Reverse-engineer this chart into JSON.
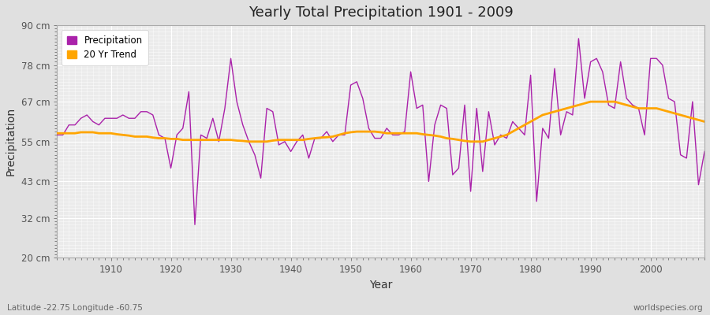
{
  "title": "Yearly Total Precipitation 1901 - 2009",
  "xlabel": "Year",
  "ylabel": "Precipitation",
  "bottom_left_label": "Latitude -22.75 Longitude -60.75",
  "bottom_right_label": "worldspecies.org",
  "ylim": [
    20,
    90
  ],
  "yticks": [
    20,
    32,
    43,
    55,
    67,
    78,
    90
  ],
  "ytick_labels": [
    "20 cm",
    "32 cm",
    "43 cm",
    "55 cm",
    "67 cm",
    "78 cm",
    "90 cm"
  ],
  "xlim": [
    1901,
    2009
  ],
  "xticks": [
    1910,
    1920,
    1930,
    1940,
    1950,
    1960,
    1970,
    1980,
    1990,
    2000
  ],
  "precipitation_color": "#AA22AA",
  "trend_color": "#FFA500",
  "figure_bg_color": "#E0E0E0",
  "plot_bg_color": "#EBEBEB",
  "grid_color": "#FFFFFF",
  "legend_entries": [
    "Precipitation",
    "20 Yr Trend"
  ],
  "years": [
    1901,
    1902,
    1903,
    1904,
    1905,
    1906,
    1907,
    1908,
    1909,
    1910,
    1911,
    1912,
    1913,
    1914,
    1915,
    1916,
    1917,
    1918,
    1919,
    1920,
    1921,
    1922,
    1923,
    1924,
    1925,
    1926,
    1927,
    1928,
    1929,
    1930,
    1931,
    1932,
    1933,
    1934,
    1935,
    1936,
    1937,
    1938,
    1939,
    1940,
    1941,
    1942,
    1943,
    1944,
    1945,
    1946,
    1947,
    1948,
    1949,
    1950,
    1951,
    1952,
    1953,
    1954,
    1955,
    1956,
    1957,
    1958,
    1959,
    1960,
    1961,
    1962,
    1963,
    1964,
    1965,
    1966,
    1967,
    1968,
    1969,
    1970,
    1971,
    1972,
    1973,
    1974,
    1975,
    1976,
    1977,
    1978,
    1979,
    1980,
    1981,
    1982,
    1983,
    1984,
    1985,
    1986,
    1987,
    1988,
    1989,
    1990,
    1991,
    1992,
    1993,
    1994,
    1995,
    1996,
    1997,
    1998,
    1999,
    2000,
    2001,
    2002,
    2003,
    2004,
    2005,
    2006,
    2007,
    2008,
    2009
  ],
  "precipitation": [
    57,
    57,
    60,
    60,
    62,
    63,
    61,
    60,
    62,
    62,
    62,
    63,
    62,
    62,
    64,
    64,
    63,
    57,
    56,
    47,
    57,
    59,
    70,
    30,
    57,
    56,
    62,
    55,
    65,
    80,
    67,
    60,
    55,
    51,
    44,
    65,
    64,
    54,
    55,
    52,
    55,
    57,
    50,
    56,
    56,
    58,
    55,
    57,
    57,
    72,
    73,
    68,
    59,
    56,
    56,
    59,
    57,
    57,
    58,
    76,
    65,
    66,
    43,
    60,
    66,
    65,
    45,
    47,
    66,
    40,
    65,
    46,
    64,
    54,
    57,
    56,
    61,
    59,
    57,
    75,
    37,
    59,
    56,
    77,
    57,
    64,
    63,
    86,
    68,
    79,
    80,
    76,
    66,
    65,
    79,
    68,
    66,
    65,
    57,
    80,
    80,
    78,
    68,
    67,
    51,
    50,
    67,
    42,
    52
  ],
  "trend": [
    57.5,
    57.5,
    57.5,
    57.5,
    57.8,
    57.8,
    57.8,
    57.5,
    57.5,
    57.5,
    57.2,
    57.0,
    56.8,
    56.5,
    56.5,
    56.5,
    56.2,
    56.0,
    56.0,
    55.8,
    55.8,
    55.5,
    55.5,
    55.5,
    55.5,
    55.5,
    55.5,
    55.5,
    55.5,
    55.5,
    55.3,
    55.2,
    55.0,
    55.0,
    55.0,
    55.0,
    55.3,
    55.5,
    55.5,
    55.5,
    55.5,
    55.5,
    55.8,
    56.0,
    56.2,
    56.3,
    56.5,
    57.0,
    57.5,
    57.8,
    58.0,
    58.0,
    58.0,
    58.0,
    57.8,
    57.5,
    57.5,
    57.5,
    57.5,
    57.5,
    57.5,
    57.2,
    57.0,
    56.8,
    56.5,
    56.0,
    55.8,
    55.5,
    55.2,
    55.0,
    55.0,
    55.0,
    55.5,
    56.0,
    56.5,
    57.0,
    58.0,
    59.0,
    60.0,
    61.0,
    62.0,
    63.0,
    63.5,
    64.0,
    64.5,
    65.0,
    65.5,
    66.0,
    66.5,
    67.0,
    67.0,
    67.0,
    67.0,
    67.0,
    66.5,
    66.0,
    65.5,
    65.0,
    65.0,
    65.0,
    65.0,
    64.5,
    64.0,
    63.5,
    63.0,
    62.5,
    62.0,
    61.5,
    61.0
  ]
}
